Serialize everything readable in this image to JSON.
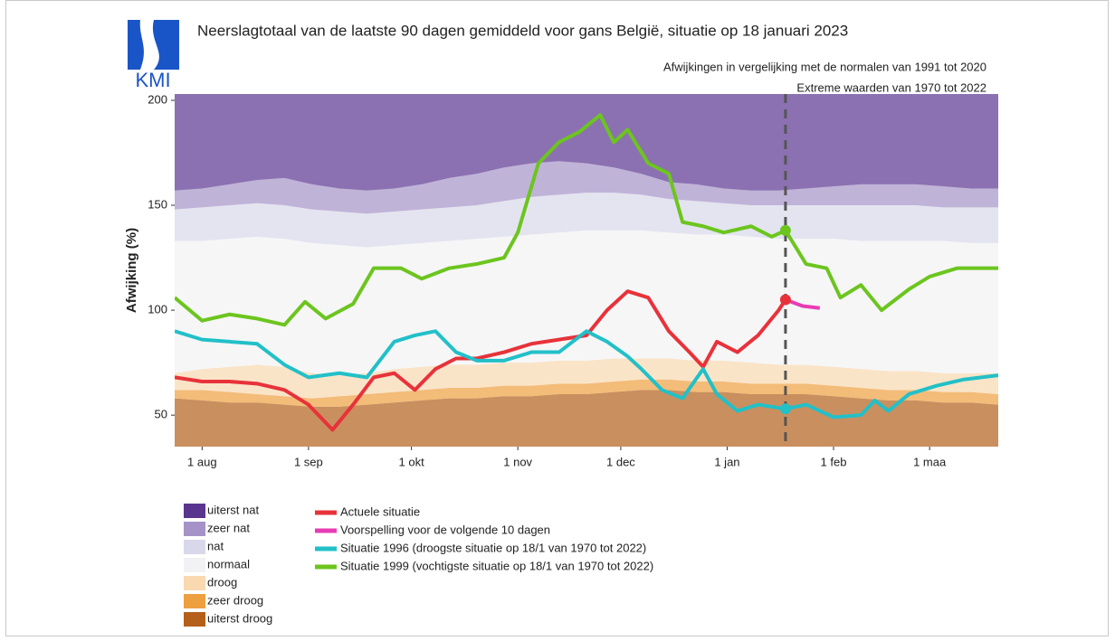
{
  "logo": {
    "text": "KMI"
  },
  "chart_data": {
    "type": "band-line",
    "title": "Neerslagtotaal van de laatste 90 dagen gemiddeld voor gans België, situatie op 18 januari 2023",
    "subtitles": [
      "Afwijkingen in vergelijking met de normalen van 1991 tot 2020",
      "Extreme waarden van 1970 tot 2022"
    ],
    "y_label": "Afwijking (%)",
    "xlim": [
      -8,
      232
    ],
    "xticks": [
      {
        "value": 0,
        "label": "1 aug"
      },
      {
        "value": 31,
        "label": "1 sep"
      },
      {
        "value": 61,
        "label": "1 okt"
      },
      {
        "value": 92,
        "label": "1 nov"
      },
      {
        "value": 122,
        "label": "1 dec"
      },
      {
        "value": 153,
        "label": "1 jan"
      },
      {
        "value": 184,
        "label": "1 feb"
      },
      {
        "value": 212,
        "label": "1 maa"
      }
    ],
    "ylim": [
      35,
      203
    ],
    "yticks": [
      50,
      100,
      150,
      200
    ],
    "today": 170,
    "band_x": [
      -8,
      0,
      8,
      16,
      24,
      32,
      40,
      48,
      56,
      64,
      72,
      80,
      88,
      96,
      104,
      112,
      120,
      128,
      136,
      144,
      152,
      160,
      168,
      176,
      184,
      192,
      200,
      208,
      216,
      224,
      232
    ],
    "bands": [
      {
        "name": "uiterst droog",
        "color": "#b4601a",
        "values": [
          58,
          57,
          56,
          56,
          55,
          54,
          54,
          55,
          56,
          57,
          58,
          58,
          59,
          59,
          60,
          60,
          61,
          62,
          62,
          61,
          61,
          60,
          60,
          60,
          59,
          58,
          57,
          57,
          56,
          56,
          55
        ]
      },
      {
        "name": "zeer droog",
        "color": "#eea040",
        "values": [
          62,
          62,
          61,
          60,
          59,
          58,
          59,
          60,
          61,
          62,
          63,
          63,
          64,
          64,
          65,
          65,
          66,
          67,
          67,
          66,
          66,
          65,
          65,
          65,
          64,
          63,
          62,
          62,
          61,
          61,
          60
        ]
      },
      {
        "name": "droog",
        "color": "#f8d9b0",
        "values": [
          70,
          72,
          73,
          74,
          73,
          70,
          69,
          70,
          72,
          73,
          74,
          74,
          75,
          75,
          76,
          76,
          77,
          77,
          77,
          76,
          76,
          75,
          74,
          74,
          73,
          72,
          71,
          71,
          70,
          70,
          70
        ]
      },
      {
        "name": "normaal",
        "color": "#f2f2f4",
        "values": [
          133,
          133,
          134,
          135,
          134,
          132,
          131,
          130,
          131,
          132,
          133,
          134,
          135,
          136,
          137,
          138,
          138,
          138,
          137,
          136,
          136,
          135,
          134,
          134,
          134,
          133,
          133,
          133,
          133,
          132,
          132
        ]
      },
      {
        "name": "nat",
        "color": "#d9d8ea",
        "values": [
          148,
          149,
          150,
          151,
          150,
          148,
          147,
          146,
          147,
          148,
          149,
          150,
          152,
          154,
          155,
          156,
          156,
          155,
          153,
          152,
          151,
          150,
          150,
          150,
          150,
          150,
          150,
          150,
          149,
          149,
          149
        ]
      },
      {
        "name": "zeer nat",
        "color": "#a593c8",
        "values": [
          157,
          158,
          160,
          162,
          163,
          160,
          158,
          157,
          158,
          160,
          163,
          165,
          168,
          170,
          171,
          170,
          168,
          165,
          161,
          160,
          158,
          157,
          157,
          158,
          159,
          160,
          160,
          160,
          159,
          158,
          158
        ]
      },
      {
        "name": "uiterst nat",
        "color": "#5a3590"
      }
    ],
    "series": [
      {
        "name": "Actuele situatie",
        "color": "#e8323a",
        "x": [
          -8,
          0,
          8,
          16,
          24,
          31,
          38,
          44,
          50,
          56,
          62,
          68,
          74,
          80,
          88,
          96,
          104,
          112,
          118,
          124,
          130,
          136,
          142,
          146,
          150,
          156,
          162,
          168,
          170
        ],
        "values": [
          68,
          66,
          66,
          65,
          62,
          55,
          43,
          55,
          68,
          70,
          62,
          72,
          77,
          77,
          80,
          84,
          86,
          88,
          100,
          109,
          106,
          90,
          80,
          73,
          85,
          80,
          88,
          100,
          105
        ]
      },
      {
        "name": "Voorspelling voor de volgende 10 dagen",
        "color": "#e83cb4",
        "x": [
          170,
          175,
          180
        ],
        "values": [
          105,
          102,
          101
        ]
      },
      {
        "name": "Situatie 1996 (droogste situatie op 18/1 van 1970 tot 2022)",
        "color": "#22c0c8",
        "x": [
          -8,
          0,
          8,
          16,
          24,
          31,
          40,
          48,
          56,
          62,
          68,
          74,
          80,
          88,
          96,
          104,
          112,
          118,
          124,
          128,
          134,
          140,
          146,
          150,
          156,
          162,
          170,
          176,
          184,
          192,
          196,
          200,
          206,
          214,
          222,
          232
        ],
        "values": [
          90,
          86,
          85,
          84,
          74,
          68,
          70,
          68,
          85,
          88,
          90,
          80,
          76,
          76,
          80,
          80,
          90,
          85,
          78,
          72,
          62,
          58,
          72,
          60,
          52,
          55,
          53,
          55,
          49,
          50,
          57,
          52,
          60,
          64,
          67,
          69
        ]
      },
      {
        "name": "Situatie 1999 (vochtigste situatie op 18/1 van 1970 tot 2022)",
        "color": "#6cc51e",
        "x": [
          -8,
          0,
          8,
          16,
          24,
          30,
          36,
          44,
          50,
          58,
          64,
          72,
          80,
          88,
          92,
          98,
          104,
          110,
          116,
          120,
          124,
          130,
          136,
          140,
          146,
          152,
          160,
          166,
          170,
          176,
          182,
          186,
          192,
          198,
          206,
          212,
          220,
          226,
          232
        ],
        "values": [
          106,
          95,
          98,
          96,
          93,
          104,
          96,
          103,
          120,
          120,
          115,
          120,
          122,
          125,
          137,
          170,
          180,
          185,
          193,
          180,
          186,
          170,
          165,
          142,
          140,
          137,
          140,
          135,
          138,
          122,
          120,
          106,
          112,
          100,
          110,
          116,
          120,
          120,
          120
        ]
      }
    ]
  }
}
